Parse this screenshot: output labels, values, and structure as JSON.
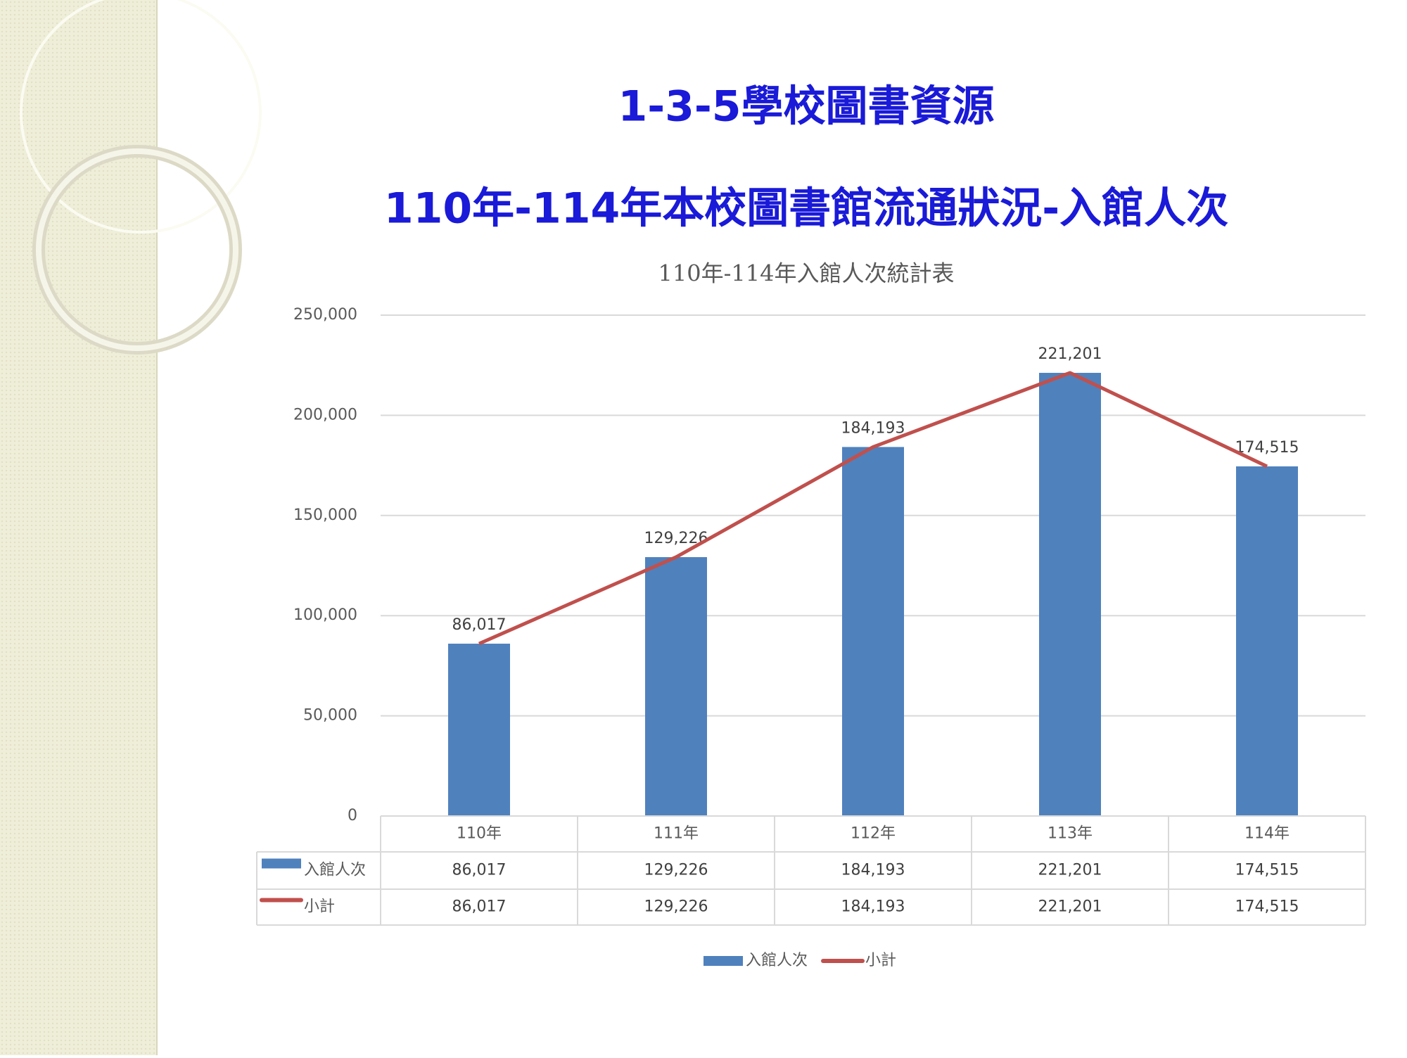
{
  "slide": {
    "heading": "1-3-5學校圖書資源",
    "subheading": "110年-114年本校圖書館流通狀況-入館人次"
  },
  "chart_data": {
    "type": "bar",
    "title": "110年-114年入館人次統計表",
    "categories": [
      "110年",
      "111年",
      "112年",
      "113年",
      "114年"
    ],
    "series": [
      {
        "name": "入館人次",
        "type": "bar",
        "color": "#4f81bd",
        "values": [
          86017,
          129226,
          184193,
          221201,
          174515
        ],
        "value_labels": [
          "86,017",
          "129,226",
          "184,193",
          "221,201",
          "174,515"
        ]
      },
      {
        "name": "小計",
        "type": "line",
        "color": "#c0504d",
        "values": [
          86017,
          129226,
          184193,
          221201,
          174515
        ],
        "value_labels": [
          "86,017",
          "129,226",
          "184,193",
          "221,201",
          "174,515"
        ]
      }
    ],
    "ylim": [
      0,
      250000
    ],
    "yticks": [
      {
        "value": 0,
        "label": "0"
      },
      {
        "value": 50000,
        "label": "50,000"
      },
      {
        "value": 100000,
        "label": "100,000"
      },
      {
        "value": 150000,
        "label": "150,000"
      },
      {
        "value": 200000,
        "label": "200,000"
      },
      {
        "value": 250000,
        "label": "250,000"
      }
    ],
    "grid": true,
    "legend": "bottom",
    "data_table": true
  }
}
